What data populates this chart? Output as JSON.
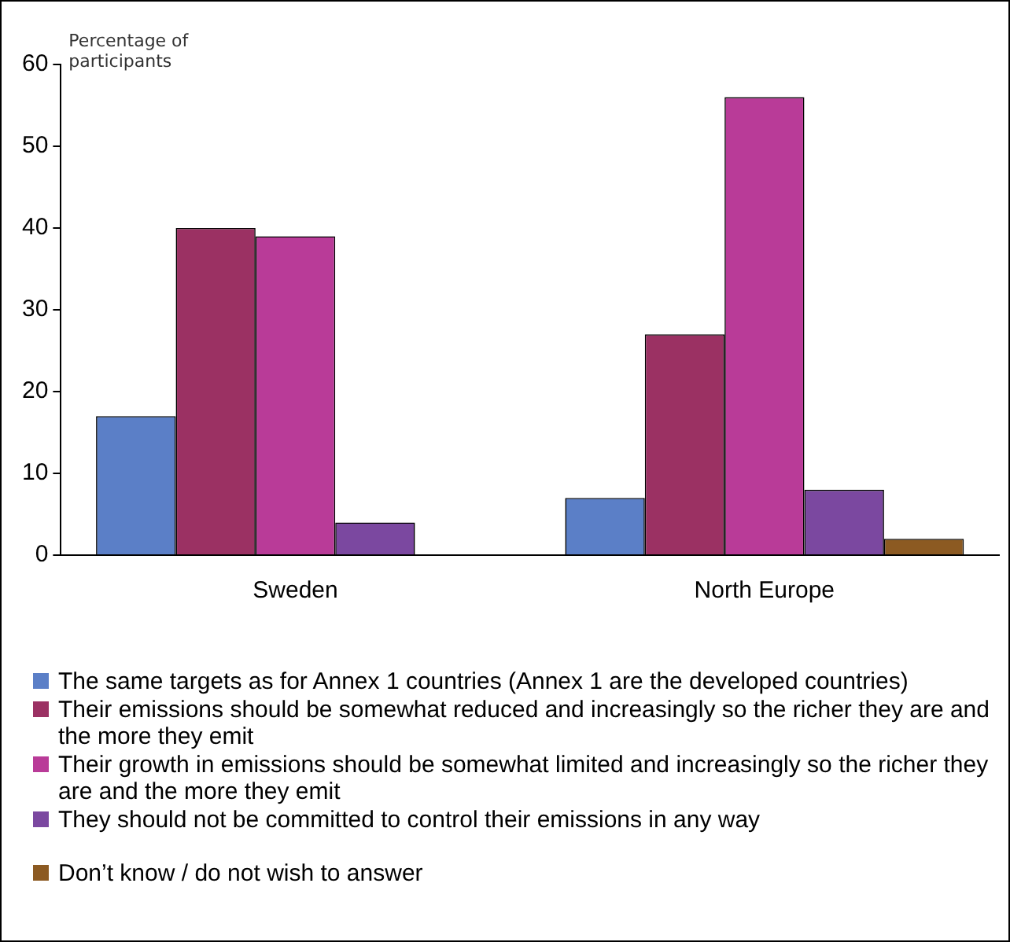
{
  "chart_data": {
    "type": "bar",
    "ylabel": "Percentage of participants",
    "categories": [
      "Sweden",
      "North Europe"
    ],
    "series": [
      {
        "name": "The same targets as for Annex 1 countries (Annex 1 are the developed countries)",
        "color": "#5b7fc7",
        "values": [
          17,
          7
        ]
      },
      {
        "name": "Their emissions should be somewhat reduced and increasingly so the richer they are and the more they emit",
        "color": "#9b3163",
        "values": [
          40,
          27
        ]
      },
      {
        "name": "Their growth in emissions should be somewhat limited and increasingly so the richer they are and the more they emit",
        "color": "#b93b98",
        "values": [
          39,
          56
        ]
      },
      {
        "name": "They should not be committed to control their emissions in any way",
        "color": "#7b48a0",
        "values": [
          4,
          8
        ]
      },
      {
        "name": "Don’t know / do not wish to answer",
        "color": "#8c5a22",
        "values": [
          0,
          2
        ]
      }
    ],
    "ylim": [
      0,
      60
    ],
    "yticks": [
      0,
      10,
      20,
      30,
      40,
      50,
      60
    ],
    "grid": false,
    "legend": "bottom"
  }
}
